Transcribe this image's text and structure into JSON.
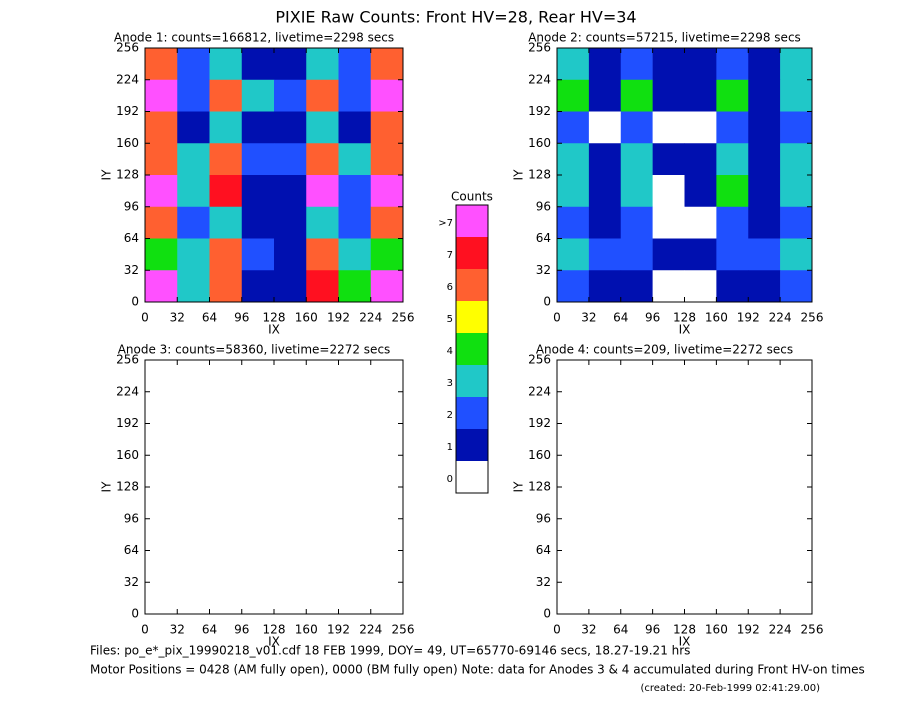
{
  "title": "PIXIE Raw Counts:  Front HV=28, Rear HV=34",
  "colorbar": {
    "title": "Counts",
    "ticks": [
      0,
      1,
      2,
      3,
      4,
      5,
      6,
      7,
      {
        "value": 8,
        "label": ">7"
      }
    ],
    "colors": [
      "#ffffff",
      "#0010b0",
      "#2050ff",
      "#20c8c8",
      "#10e010",
      "#ffff00",
      "#ff6030",
      "#ff1020",
      "#ff50ff"
    ]
  },
  "footer": {
    "files": "Files: po_e*_pix_19990218_v01.cdf    18 FEB 1999, DOY= 49, UT=65770-69146 secs, 18.27-19.21 hrs",
    "motor": "Motor Positions = 0428 (AM fully open), 0000 (BM fully open)    Note: data for Anodes 3 & 4 accumulated during Front HV-on times",
    "created": "(created: 20-Feb-1999 02:41:29.00)"
  },
  "chart_data": [
    {
      "type": "heatmap",
      "title": "Anode 1: counts=166812, livetime=2298 secs",
      "xlabel": "IX",
      "ylabel": "IY",
      "xlim": [
        0,
        256
      ],
      "ylim": [
        0,
        256
      ],
      "xticks": [
        0,
        32,
        64,
        96,
        128,
        160,
        192,
        224,
        256
      ],
      "yticks": [
        0,
        32,
        64,
        96,
        128,
        160,
        192,
        224,
        256
      ],
      "values": [
        [
          6,
          2,
          3,
          1,
          1,
          3,
          2,
          6
        ],
        [
          8,
          2,
          6,
          3,
          2,
          6,
          2,
          8
        ],
        [
          6,
          1,
          3,
          1,
          1,
          3,
          1,
          6
        ],
        [
          6,
          3,
          6,
          2,
          2,
          6,
          3,
          6
        ],
        [
          8,
          3,
          7,
          1,
          1,
          8,
          2,
          8
        ],
        [
          6,
          2,
          3,
          1,
          1,
          3,
          2,
          6
        ],
        [
          4,
          3,
          6,
          2,
          1,
          6,
          3,
          4
        ],
        [
          8,
          3,
          6,
          1,
          1,
          7,
          4,
          8
        ]
      ]
    },
    {
      "type": "heatmap",
      "title": "Anode 2: counts=57215, livetime=2298 secs",
      "xlabel": "IX",
      "ylabel": "IY",
      "xlim": [
        0,
        256
      ],
      "ylim": [
        0,
        256
      ],
      "xticks": [
        0,
        32,
        64,
        96,
        128,
        160,
        192,
        224,
        256
      ],
      "yticks": [
        0,
        32,
        64,
        96,
        128,
        160,
        192,
        224,
        256
      ],
      "values": [
        [
          3,
          1,
          2,
          1,
          1,
          2,
          1,
          3
        ],
        [
          4,
          1,
          4,
          1,
          1,
          4,
          1,
          3
        ],
        [
          2,
          0,
          2,
          0,
          0,
          2,
          1,
          2
        ],
        [
          3,
          1,
          3,
          1,
          1,
          3,
          1,
          3
        ],
        [
          3,
          1,
          3,
          0,
          1,
          4,
          1,
          3
        ],
        [
          2,
          1,
          2,
          0,
          0,
          2,
          1,
          2
        ],
        [
          3,
          2,
          2,
          1,
          1,
          2,
          2,
          3
        ],
        [
          2,
          1,
          1,
          0,
          0,
          1,
          1,
          2
        ]
      ]
    },
    {
      "type": "heatmap",
      "title": "Anode 3: counts=58360, livetime=2272 secs",
      "xlabel": "IX",
      "ylabel": "IY",
      "xlim": [
        0,
        256
      ],
      "ylim": [
        0,
        256
      ],
      "xticks": [
        0,
        32,
        64,
        96,
        128,
        160,
        192,
        224,
        256
      ],
      "yticks": [
        0,
        32,
        64,
        96,
        128,
        160,
        192,
        224,
        256
      ],
      "values": [
        [
          0,
          0,
          0,
          0,
          0,
          0,
          0,
          0
        ],
        [
          0,
          0,
          0,
          0,
          0,
          0,
          0,
          0
        ],
        [
          0,
          0,
          0,
          0,
          0,
          0,
          0,
          0
        ],
        [
          0,
          0,
          0,
          0,
          0,
          0,
          0,
          0
        ],
        [
          0,
          0,
          0,
          0,
          0,
          0,
          0,
          0
        ],
        [
          0,
          0,
          0,
          0,
          0,
          0,
          0,
          0
        ],
        [
          0,
          0,
          0,
          0,
          0,
          0,
          0,
          0
        ],
        [
          0,
          0,
          0,
          0,
          0,
          0,
          0,
          0
        ]
      ]
    },
    {
      "type": "heatmap",
      "title": "Anode 4: counts=209, livetime=2272 secs",
      "xlabel": "IX",
      "ylabel": "IY",
      "xlim": [
        0,
        256
      ],
      "ylim": [
        0,
        256
      ],
      "xticks": [
        0,
        32,
        64,
        96,
        128,
        160,
        192,
        224,
        256
      ],
      "yticks": [
        0,
        32,
        64,
        96,
        128,
        160,
        192,
        224,
        256
      ],
      "values": [
        [
          0,
          0,
          0,
          0,
          0,
          0,
          0,
          0
        ],
        [
          0,
          0,
          0,
          0,
          0,
          0,
          0,
          0
        ],
        [
          0,
          0,
          0,
          0,
          0,
          0,
          0,
          0
        ],
        [
          0,
          0,
          0,
          0,
          0,
          0,
          0,
          0
        ],
        [
          0,
          0,
          0,
          0,
          0,
          0,
          0,
          0
        ],
        [
          0,
          0,
          0,
          0,
          0,
          0,
          0,
          0
        ],
        [
          0,
          0,
          0,
          0,
          0,
          0,
          0,
          0
        ],
        [
          0,
          0,
          0,
          0,
          0,
          0,
          0,
          0
        ]
      ]
    }
  ]
}
